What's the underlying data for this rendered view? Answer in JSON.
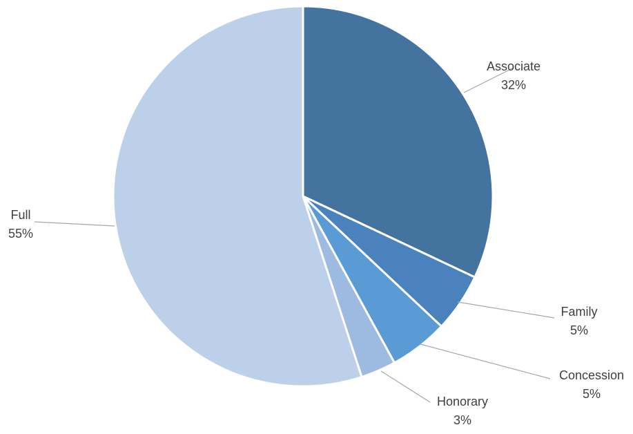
{
  "chart_data": {
    "type": "pie",
    "slices": [
      {
        "label": "Associate",
        "value": 32,
        "value_label": "32%",
        "color": "#44739f"
      },
      {
        "label": "Family",
        "value": 5,
        "value_label": "5%",
        "color": "#4a82bd"
      },
      {
        "label": "Concession",
        "value": 5,
        "value_label": "5%",
        "color": "#5b9bd5"
      },
      {
        "label": "Honorary",
        "value": 3,
        "value_label": "3%",
        "color": "#9dbbe1"
      },
      {
        "label": "Full",
        "value": 55,
        "value_label": "55%",
        "color": "#bdd0ea"
      }
    ],
    "legend": "none",
    "data_labels": "category name and percentage with leader lines"
  }
}
